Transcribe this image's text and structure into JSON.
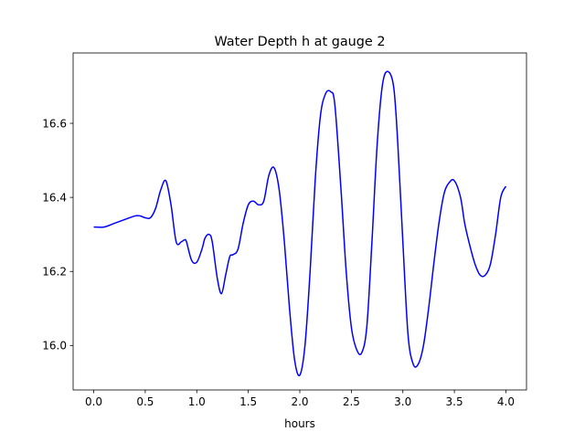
{
  "chart_data": {
    "type": "line",
    "title": "Water Depth h at gauge 2",
    "xlabel": "hours",
    "ylabel": "",
    "xlim": [
      -0.2,
      4.2
    ],
    "ylim": [
      15.88,
      16.79
    ],
    "grid": false,
    "legend": "none",
    "x_ticks": [
      0.0,
      0.5,
      1.0,
      1.5,
      2.0,
      2.5,
      3.0,
      3.5,
      4.0
    ],
    "x_tick_labels": [
      "0.0",
      "0.5",
      "1.0",
      "1.5",
      "2.0",
      "2.5",
      "3.0",
      "3.5",
      "4.0"
    ],
    "y_ticks": [
      16.0,
      16.2,
      16.4,
      16.6
    ],
    "y_tick_labels": [
      "16.0",
      "16.2",
      "16.4",
      "16.6"
    ],
    "series": [
      {
        "color": "#0000ff",
        "x": [
          0.0,
          0.1,
          0.2,
          0.3,
          0.4,
          0.45,
          0.5,
          0.55,
          0.6,
          0.65,
          0.7,
          0.75,
          0.8,
          0.85,
          0.88,
          0.9,
          0.95,
          1.0,
          1.05,
          1.08,
          1.12,
          1.15,
          1.2,
          1.24,
          1.28,
          1.32,
          1.35,
          1.4,
          1.45,
          1.5,
          1.55,
          1.6,
          1.65,
          1.7,
          1.75,
          1.8,
          1.85,
          1.9,
          1.95,
          2.0,
          2.05,
          2.1,
          2.15,
          2.2,
          2.25,
          2.3,
          2.34,
          2.4,
          2.45,
          2.5,
          2.55,
          2.6,
          2.65,
          2.7,
          2.75,
          2.8,
          2.85,
          2.91,
          2.95,
          3.0,
          3.05,
          3.1,
          3.15,
          3.2,
          3.25,
          3.3,
          3.35,
          3.4,
          3.45,
          3.5,
          3.56,
          3.6,
          3.65,
          3.7,
          3.75,
          3.8,
          3.85,
          3.9,
          3.95,
          4.0
        ],
        "y": [
          16.32,
          16.32,
          16.33,
          16.34,
          16.35,
          16.35,
          16.345,
          16.345,
          16.37,
          16.42,
          16.445,
          16.38,
          16.28,
          16.28,
          16.285,
          16.28,
          16.23,
          16.225,
          16.26,
          16.29,
          16.3,
          16.28,
          16.18,
          16.14,
          16.19,
          16.24,
          16.245,
          16.26,
          16.33,
          16.38,
          16.39,
          16.38,
          16.39,
          16.46,
          16.48,
          16.42,
          16.28,
          16.1,
          15.96,
          15.92,
          16.0,
          16.2,
          16.45,
          16.62,
          16.68,
          16.685,
          16.65,
          16.42,
          16.2,
          16.05,
          15.99,
          15.98,
          16.05,
          16.28,
          16.54,
          16.7,
          16.74,
          16.7,
          16.55,
          16.28,
          16.03,
          15.95,
          15.95,
          16.0,
          16.1,
          16.22,
          16.33,
          16.41,
          16.44,
          16.445,
          16.4,
          16.33,
          16.27,
          16.22,
          16.19,
          16.19,
          16.22,
          16.3,
          16.4,
          16.43
        ]
      }
    ]
  }
}
